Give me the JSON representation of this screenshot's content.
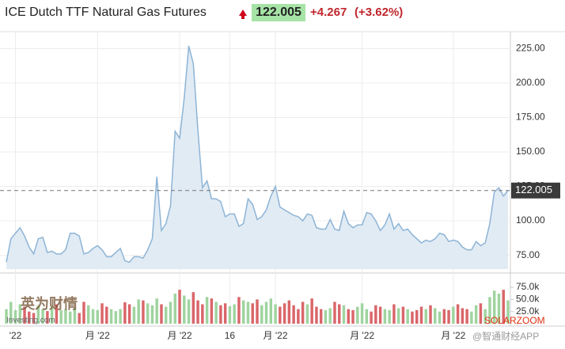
{
  "chart_data": {
    "type": "area",
    "title": "ICE Dutch TTF Natural Gas Futures",
    "price": "122.005",
    "change": "+4.267",
    "change_pct": "(+3.62%)",
    "color": "#8db4d6",
    "fill": "#e1ebf4",
    "values": [
      70,
      87,
      91,
      95,
      89,
      81,
      76,
      87,
      88,
      77,
      78,
      76,
      76,
      79,
      91,
      91,
      89,
      76,
      77,
      80,
      82,
      79,
      74,
      74,
      77,
      80,
      71,
      70,
      74,
      74,
      73,
      79,
      87,
      132,
      93,
      98,
      111,
      165,
      160,
      189,
      227,
      214,
      166,
      124,
      129,
      116,
      116,
      114,
      103,
      105,
      105,
      96,
      98,
      116,
      112,
      101,
      103,
      108,
      118,
      125,
      110,
      108,
      106,
      104,
      103,
      100,
      105,
      104,
      95,
      94,
      94,
      101,
      94,
      93,
      107,
      98,
      95,
      97,
      97,
      106,
      105,
      100,
      93,
      97,
      105,
      94,
      98,
      93,
      94,
      90,
      87,
      84,
      86,
      85,
      87,
      91,
      90,
      85,
      86,
      85,
      81,
      79,
      79,
      85,
      82,
      84,
      98,
      121,
      124,
      118,
      122.005
    ],
    "xlim": [
      0,
      110
    ],
    "xticks": [
      {
        "value": 2,
        "label": "'22"
      },
      {
        "value": 20,
        "label": "月 '22"
      },
      {
        "value": 38,
        "label": "月 '22"
      },
      {
        "value": 49,
        "label": "16"
      },
      {
        "value": 59,
        "label": "月 '22"
      },
      {
        "value": 78,
        "label": "月 '22"
      },
      {
        "value": 98,
        "label": "月 '22"
      }
    ],
    "ylim": [
      65,
      235
    ],
    "yticks": [
      {
        "value": 75,
        "label": "75.00"
      },
      {
        "value": 100,
        "label": "100.00"
      },
      {
        "value": 125,
        "label": "125.00"
      },
      {
        "value": 150,
        "label": "150.00"
      },
      {
        "value": 175,
        "label": "175.00"
      },
      {
        "value": 200,
        "label": "200.00"
      },
      {
        "value": 225,
        "label": "225.00"
      }
    ],
    "price_line": {
      "value": 122.005,
      "label": "122.005"
    },
    "grid": true,
    "volume": {
      "up_color": "#9fd49f",
      "down_color": "#d9666a",
      "values": [
        30000,
        45000,
        28000,
        40000,
        35000,
        25000,
        22000,
        38000,
        30000,
        26000,
        35000,
        40000,
        28000,
        30000,
        25000,
        33000,
        22000,
        45000,
        38000,
        30000,
        28000,
        42000,
        35000,
        30000,
        26000,
        30000,
        44000,
        40000,
        35000,
        50000,
        48000,
        42000,
        38000,
        52000,
        40000,
        35000,
        45000,
        62000,
        70000,
        58000,
        50000,
        65000,
        48000,
        40000,
        55000,
        52000,
        45000,
        38000,
        42000,
        36000,
        40000,
        55000,
        48000,
        45000,
        42000,
        50000,
        38000,
        45000,
        52000,
        40000,
        35000,
        42000,
        48000,
        38000,
        30000,
        45000,
        40000,
        52000,
        35000,
        30000,
        28000,
        32000,
        45000,
        40000,
        38000,
        30000,
        28000,
        35000,
        42000,
        30000,
        25000,
        38000,
        35000,
        30000,
        28000,
        40000,
        32000,
        35000,
        30000,
        25000,
        28000,
        35000,
        30000,
        38000,
        32000,
        25000,
        30000,
        28000,
        35000,
        40000,
        32000,
        30000,
        25000,
        38000,
        42000,
        30000,
        55000,
        68000,
        62000,
        70000,
        48000
      ],
      "ylim": [
        0,
        80000
      ],
      "yticks": [
        {
          "value": 25000,
          "label": "25.0k"
        },
        {
          "value": 50000,
          "label": "50.0k"
        },
        {
          "value": 75000,
          "label": "75.0k"
        }
      ]
    },
    "watermarks": [
      "英为财情",
      "Investing.com",
      "SOLARZOOM",
      "@智通财经APP"
    ]
  }
}
